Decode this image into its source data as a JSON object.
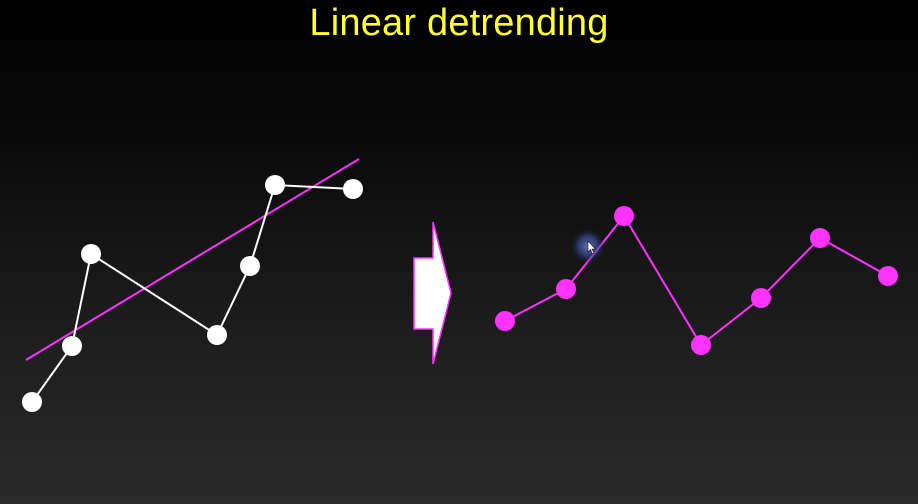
{
  "slide": {
    "title": "Linear detrending"
  },
  "colors": {
    "title": "#ffff33",
    "original_points": "#ffffff",
    "trend_line": "#ff33ff",
    "detrended_points": "#ff33ff",
    "arrow_fill": "#ffffff",
    "arrow_outline": "#ff33ff",
    "cursor_halo": "#4a5fb0"
  },
  "icons": {
    "transform_arrow": "right-arrow-icon",
    "cursor": "mouse-pointer-icon"
  }
}
